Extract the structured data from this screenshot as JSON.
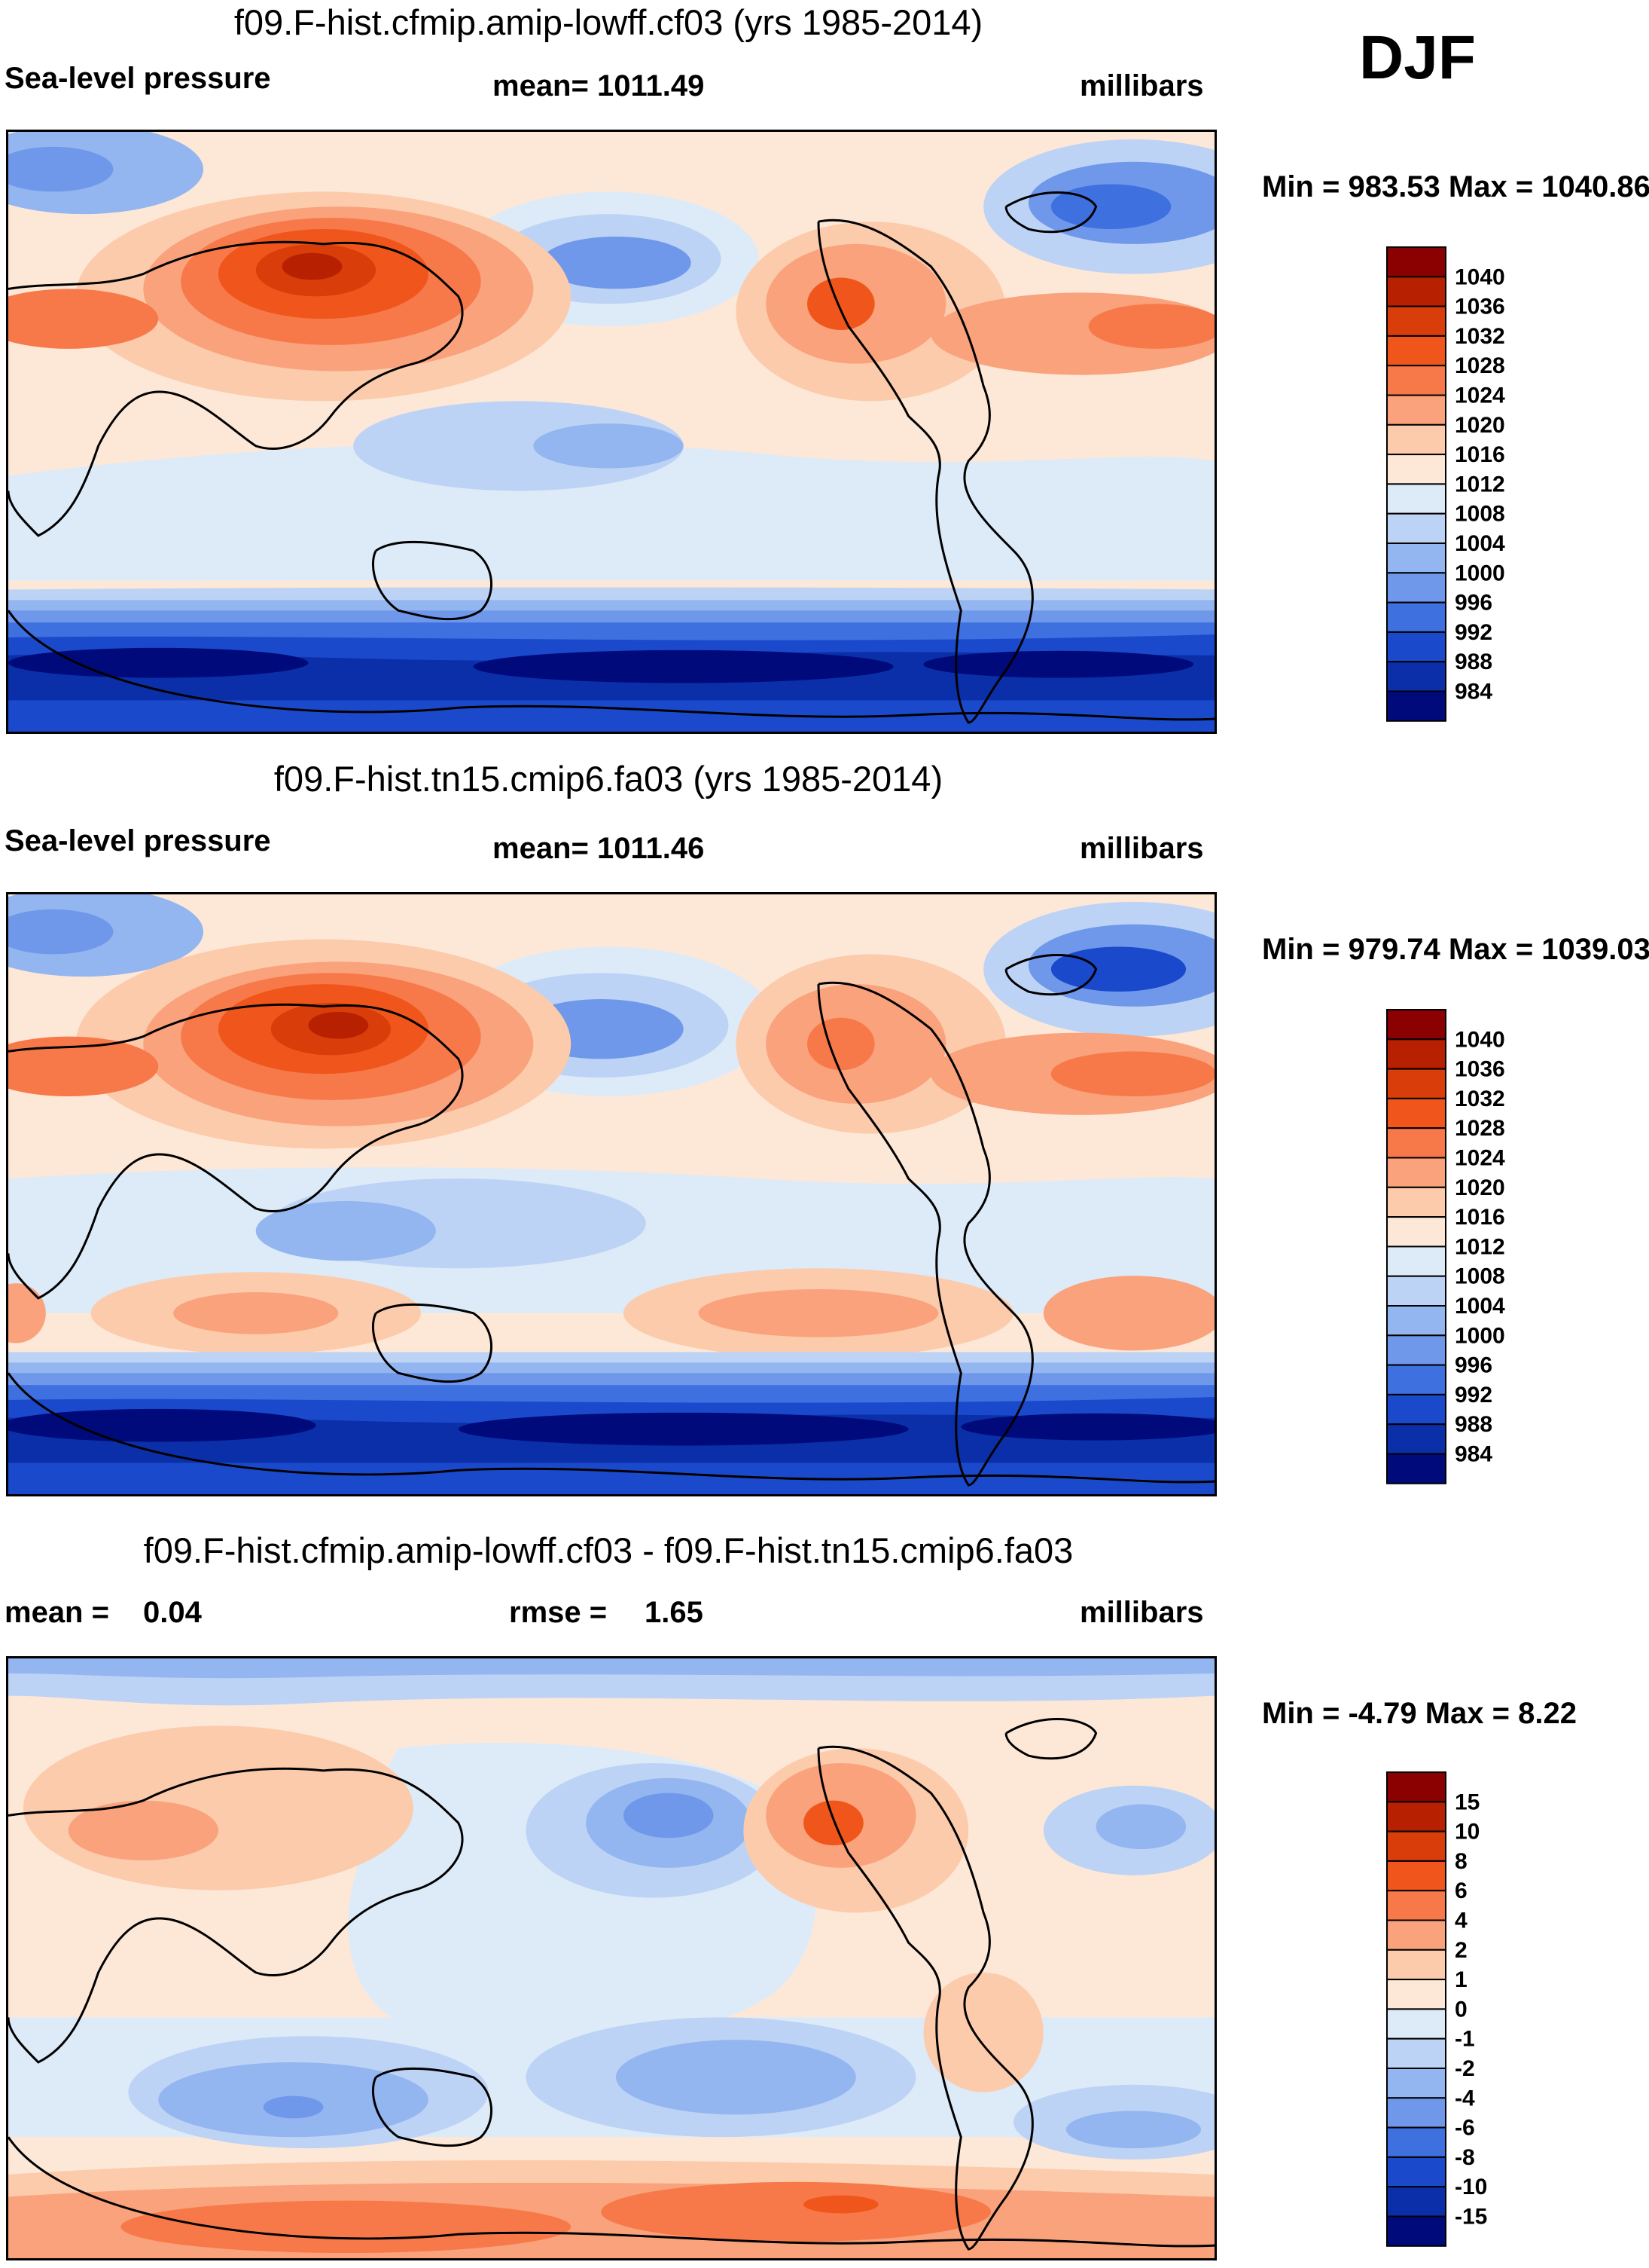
{
  "season": "DJF",
  "chart_data": [
    {
      "type": "heatmap",
      "title": "f09.F-hist.cfmip.amip-lowff.cf03 (yrs 1985-2014)",
      "variable": "Sea-level pressure",
      "mean_text": "mean= 1011.49",
      "units": "millibars",
      "minmax_text": "Min = 983.53 Max = 1040.86",
      "min": 983.53,
      "max": 1040.86,
      "levels": [
        "1040",
        "1036",
        "1032",
        "1028",
        "1024",
        "1020",
        "1016",
        "1012",
        "1008",
        "1004",
        "1000",
        "996",
        "992",
        "988",
        "984"
      ],
      "colors": [
        "#8b0000",
        "#b72000",
        "#d93d0a",
        "#f0561b",
        "#f7794a",
        "#f9a27c",
        "#fccbac",
        "#fde8d8",
        "#ddeaf8",
        "#bdd3f5",
        "#93b6f0",
        "#6f98ea",
        "#3f70e0",
        "#1b49cc",
        "#0a2fa8",
        "#000a7a"
      ]
    },
    {
      "type": "heatmap",
      "title": "f09.F-hist.tn15.cmip6.fa03 (yrs 1985-2014)",
      "variable": "Sea-level pressure",
      "mean_text": "mean= 1011.46",
      "units": "millibars",
      "minmax_text": "Min = 979.74 Max = 1039.03",
      "min": 979.74,
      "max": 1039.03,
      "levels": [
        "1040",
        "1036",
        "1032",
        "1028",
        "1024",
        "1020",
        "1016",
        "1012",
        "1008",
        "1004",
        "1000",
        "996",
        "992",
        "988",
        "984"
      ],
      "colors": [
        "#8b0000",
        "#b72000",
        "#d93d0a",
        "#f0561b",
        "#f7794a",
        "#f9a27c",
        "#fccbac",
        "#fde8d8",
        "#ddeaf8",
        "#bdd3f5",
        "#93b6f0",
        "#6f98ea",
        "#3f70e0",
        "#1b49cc",
        "#0a2fa8",
        "#000a7a"
      ]
    },
    {
      "type": "heatmap",
      "title": "f09.F-hist.cfmip.amip-lowff.cf03 - f09.F-hist.tn15.cmip6.fa03",
      "mean_label": "mean =",
      "mean_value": "0.04",
      "rmse_label": "rmse =",
      "rmse_value": "1.65",
      "units": "millibars",
      "minmax_text": "Min =  -4.79 Max =   8.22",
      "min": -4.79,
      "max": 8.22,
      "levels": [
        "15",
        "10",
        "8",
        "6",
        "4",
        "2",
        "1",
        "0",
        "-1",
        "-2",
        "-4",
        "-6",
        "-8",
        "-10",
        "-15"
      ],
      "colors": [
        "#8b0000",
        "#b72000",
        "#d93d0a",
        "#f0561b",
        "#f7794a",
        "#f9a27c",
        "#fccbac",
        "#fde8d8",
        "#ddeaf8",
        "#bdd3f5",
        "#93b6f0",
        "#6f98ea",
        "#3f70e0",
        "#1b49cc",
        "#0a2fa8",
        "#000a7a"
      ]
    }
  ]
}
